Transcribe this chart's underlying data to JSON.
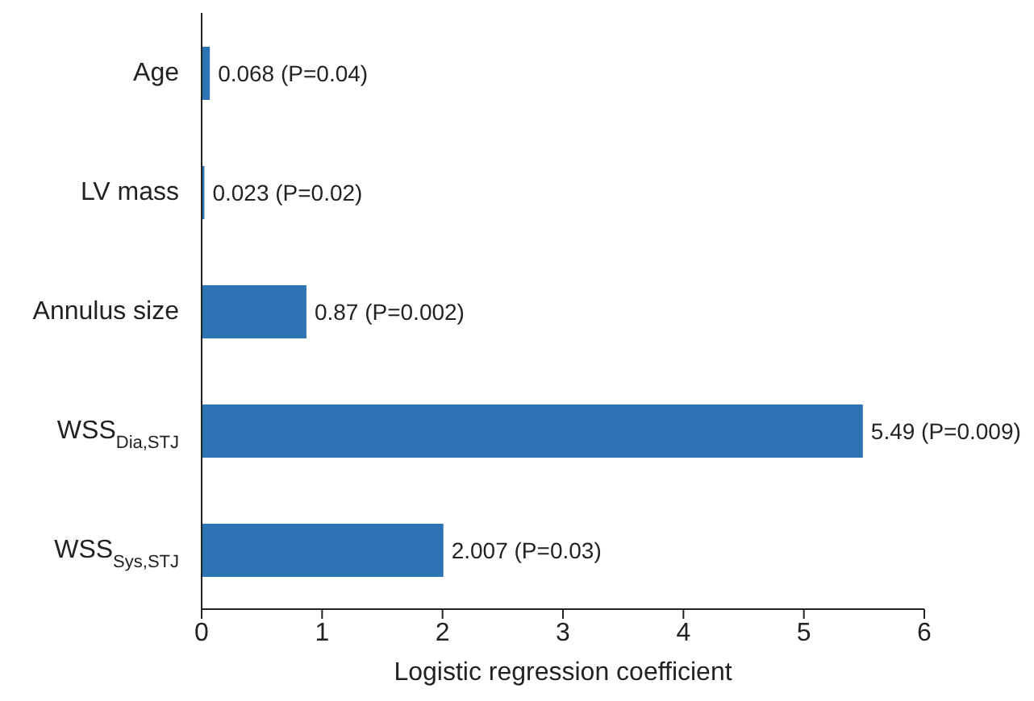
{
  "chart_data": {
    "type": "bar",
    "orientation": "horizontal",
    "categories": [
      "Age",
      "LV mass",
      "Annulus size",
      "WSS$_{Dia,STJ}$",
      "WSS$_{Sys,STJ}$"
    ],
    "values": [
      0.068,
      0.023,
      0.87,
      5.49,
      2.007
    ],
    "value_labels": [
      "0.068 (P=0.04)",
      "0.023 (P=0.02)",
      "0.87 (P=0.002)",
      "5.49 (P=0.009)",
      "2.007 (P=0.03)"
    ],
    "color": "#2e74b5",
    "xlim": [
      0,
      6
    ],
    "xticks": [
      0,
      1,
      2,
      3,
      4,
      5,
      6
    ],
    "xlabel": "Logistic regression coefficient",
    "grid": false,
    "legend": false
  }
}
